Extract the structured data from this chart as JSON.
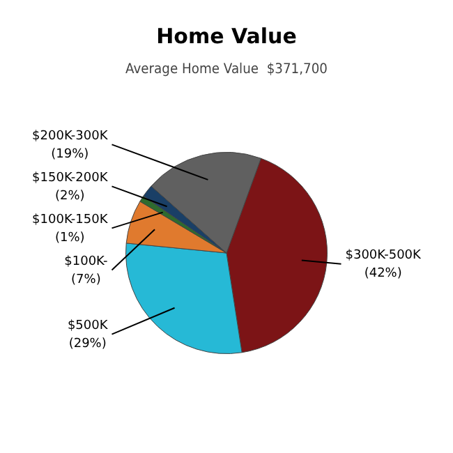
{
  "chart_data": {
    "type": "pie",
    "title": "Home Value",
    "subtitle": "Average Home Value  $371,700",
    "categories": [
      "$300K-500K",
      "$500K",
      "$100K-",
      "$100K-150K",
      "$150K-200K",
      "$200K-300K"
    ],
    "values": [
      42,
      29,
      7,
      1,
      2,
      19
    ],
    "value_labels": [
      "(42%)",
      "(29%)",
      "(7%)",
      "(1%)",
      "(2%)",
      "(19%)"
    ],
    "colors": [
      "#7c1416",
      "#26b9d6",
      "#e07a2e",
      "#2e6b2e",
      "#1a3f66",
      "#606060"
    ],
    "legend": false
  }
}
